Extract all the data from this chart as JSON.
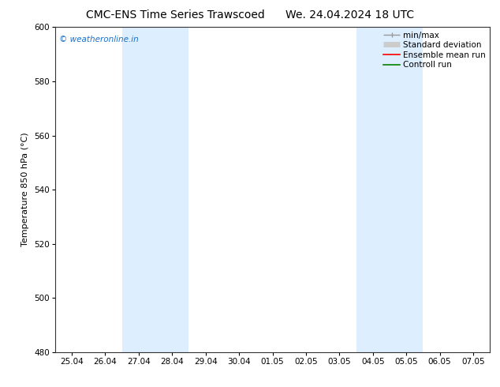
{
  "title": "CMC-ENS Time Series Trawscoed",
  "subtitle": "We. 24.04.2024 18 UTC",
  "ylabel": "Temperature 850 hPa (°C)",
  "xlim_dates": [
    "25.04",
    "26.04",
    "27.04",
    "28.04",
    "29.04",
    "30.04",
    "01.05",
    "02.05",
    "03.05",
    "04.05",
    "05.05",
    "06.05",
    "07.05"
  ],
  "ylim": [
    480,
    600
  ],
  "yticks": [
    480,
    500,
    520,
    540,
    560,
    580,
    600
  ],
  "shaded_regions": [
    {
      "xstart": 2,
      "xend": 4
    },
    {
      "xstart": 9,
      "xend": 11
    }
  ],
  "shaded_color": "#ddeeff",
  "watermark": "© weatheronline.in",
  "watermark_color": "#1a6fcc",
  "bg_color": "#ffffff",
  "plot_area_bg": "#ffffff",
  "spine_color": "#333333",
  "title_fontsize": 10,
  "tick_fontsize": 7.5,
  "ylabel_fontsize": 8,
  "legend_fontsize": 7.5,
  "title_gap": "      "
}
